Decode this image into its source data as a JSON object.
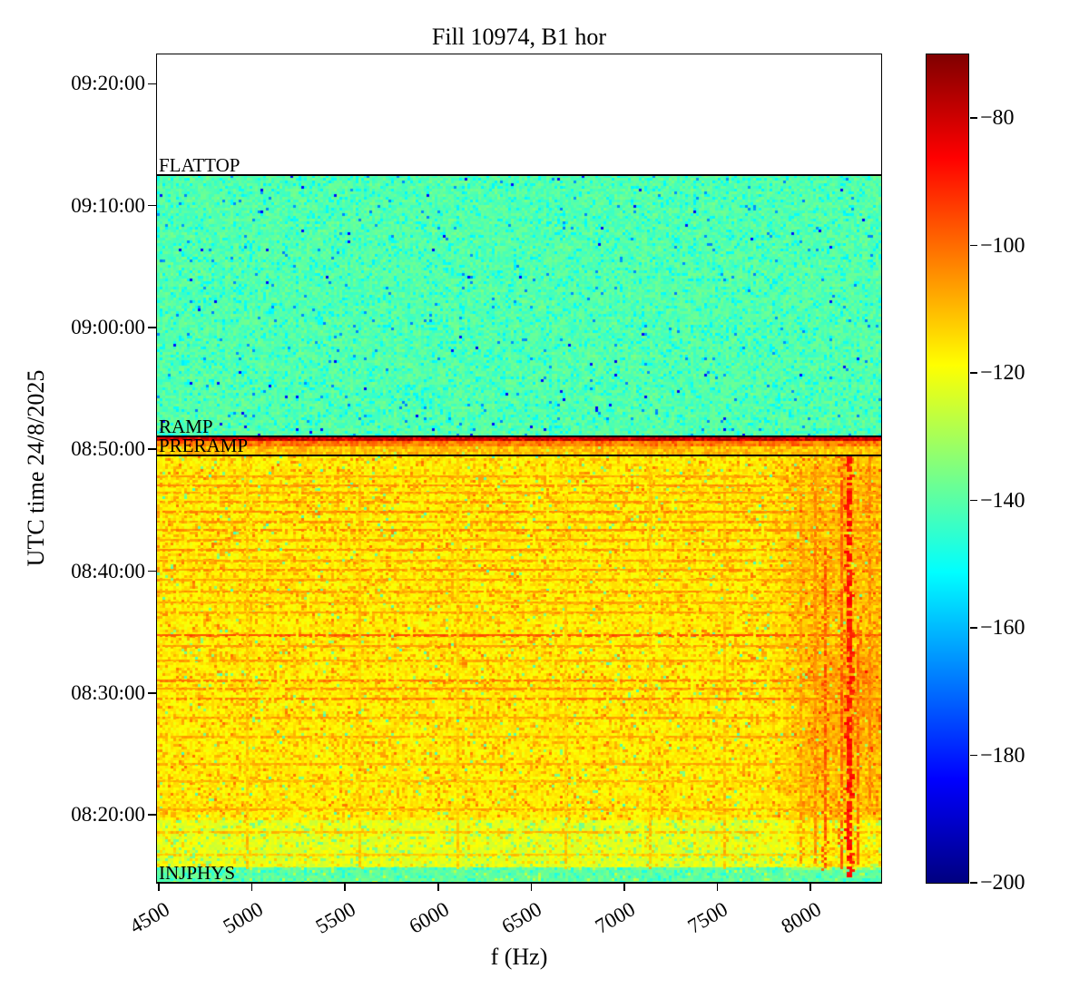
{
  "title": "Fill 10974, B1 hor",
  "axes": {
    "xlabel": "f (Hz)",
    "ylabel": "UTC time 24/8/2025",
    "x_ticks": [
      4500,
      5000,
      5500,
      6000,
      6500,
      7000,
      7500,
      8000
    ],
    "y_ticks": [
      "09:20:00",
      "09:10:00",
      "09:00:00",
      "08:50:00",
      "08:40:00",
      "08:30:00",
      "08:20:00"
    ],
    "x_range_hz": [
      4490,
      8380
    ],
    "y_top_time": "09:22:25",
    "y_bottom_time": "08:14:25"
  },
  "colorbar": {
    "colormap": "jet",
    "vmin": -200,
    "vmax": -70,
    "tick_values": [
      -80,
      -100,
      -120,
      -140,
      -160,
      -180,
      -200
    ],
    "tick_labels": [
      "−80",
      "−100",
      "−120",
      "−140",
      "−160",
      "−180",
      "−200"
    ]
  },
  "chart_data": {
    "type": "heatmap",
    "title": "Fill 10974, B1 hor",
    "xlabel": "f (Hz)",
    "ylabel": "UTC time 24/8/2025",
    "x_range": [
      4490,
      8380
    ],
    "value_range_db": [
      -200,
      -70
    ],
    "seed": 7,
    "annotations": [
      {
        "label": "FLATTOP",
        "time": "09:12:30"
      },
      {
        "label": "RAMP",
        "time": "08:51:05"
      },
      {
        "label": "PRERAMP",
        "time": "08:49:30"
      },
      {
        "label": "INJPHYS",
        "time": "08:14:25"
      }
    ],
    "regions": [
      {
        "name": "no-data-above-flattop",
        "t_from": "09:22:25",
        "t_to": "09:12:30",
        "type": "blank"
      },
      {
        "name": "flattop-green",
        "t_from": "09:12:30",
        "t_to": "08:51:05",
        "type": "speckle",
        "base": -141,
        "noise": 4,
        "specks": [
          {
            "p": 0.1,
            "dv": -10
          },
          {
            "p": 0.012,
            "dv": -25
          },
          {
            "p": 0.003,
            "dv": -42
          },
          {
            "p": 0.15,
            "dv": 4
          }
        ]
      },
      {
        "name": "ramp-red-band",
        "t_from": "08:51:05",
        "t_to": "08:50:43",
        "type": "speckle",
        "base": -80,
        "noise": 5,
        "specks": [
          {
            "p": 0.2,
            "dv": 4
          },
          {
            "p": 0.1,
            "dv": -9
          }
        ]
      },
      {
        "name": "ramp-orange-band",
        "t_from": "08:50:43",
        "t_to": "08:50:16",
        "type": "speckle",
        "base": -103,
        "noise": 5,
        "specks": [
          {
            "p": 0.15,
            "dv": 7
          }
        ]
      },
      {
        "name": "preramp-zone",
        "t_from": "08:50:16",
        "t_to": "08:49:30",
        "type": "speckle",
        "base": -112,
        "noise": 5,
        "specks": [
          {
            "p": 0.2,
            "dv": 6
          },
          {
            "p": 0.02,
            "dv": -16
          }
        ]
      },
      {
        "name": "injphys-yellow",
        "t_from": "08:49:30",
        "t_to": "08:19:35",
        "type": "speckle",
        "base": -117,
        "noise": 4,
        "specks": [
          {
            "p": 0.14,
            "dv": 9
          },
          {
            "p": 0.03,
            "dv": 15
          },
          {
            "p": 0.02,
            "dv": -18
          },
          {
            "p": 0.006,
            "dv": -24
          }
        ]
      },
      {
        "name": "injphys-light-band",
        "t_from": "08:19:35",
        "t_to": "08:15:40",
        "type": "speckle",
        "base": -122,
        "noise": 4,
        "specks": [
          {
            "p": 0.1,
            "dv": -14
          },
          {
            "p": 0.07,
            "dv": 9
          }
        ]
      },
      {
        "name": "injection-green-band",
        "t_from": "08:15:40",
        "t_to": "08:14:25",
        "type": "speckle",
        "base": -139,
        "noise": 4,
        "specks": [
          {
            "p": 0.12,
            "dv": -8
          },
          {
            "p": 0.05,
            "dv": 12
          }
        ]
      }
    ],
    "h_streaks": [
      {
        "time": "08:47:50",
        "value": -107
      },
      {
        "time": "08:47:05",
        "value": -105
      },
      {
        "time": "08:46:30",
        "value": -107
      },
      {
        "time": "08:45:45",
        "value": -106
      },
      {
        "time": "08:44:55",
        "value": -104
      },
      {
        "time": "08:44:10",
        "value": -106
      },
      {
        "time": "08:43:30",
        "value": -104
      },
      {
        "time": "08:42:40",
        "value": -107
      },
      {
        "time": "08:41:50",
        "value": -105
      },
      {
        "time": "08:40:55",
        "value": -107
      },
      {
        "time": "08:40:10",
        "value": -105
      },
      {
        "time": "08:39:20",
        "value": -107
      },
      {
        "time": "08:38:25",
        "value": -106
      },
      {
        "time": "08:37:30",
        "value": -108
      },
      {
        "time": "08:36:40",
        "value": -107
      },
      {
        "time": "08:34:50",
        "value": -97
      },
      {
        "time": "08:33:55",
        "value": -106
      },
      {
        "time": "08:32:45",
        "value": -107
      },
      {
        "time": "08:31:05",
        "value": -103
      },
      {
        "time": "08:30:25",
        "value": -105
      },
      {
        "time": "08:29:35",
        "value": -103
      },
      {
        "time": "08:28:05",
        "value": -107
      },
      {
        "time": "08:26:30",
        "value": -108
      },
      {
        "time": "08:24:15",
        "value": -108
      },
      {
        "time": "08:22:50",
        "value": -109
      },
      {
        "time": "08:20:30",
        "value": -108
      },
      {
        "time": "08:18:40",
        "value": -110
      },
      {
        "time": "08:16:50",
        "value": -112
      }
    ],
    "v_streaks": [
      {
        "f_hz": 8195,
        "value": -89,
        "w": 2,
        "t_from": "08:49:30",
        "t_to": "08:15:00"
      },
      {
        "f_hz": 8160,
        "value": -98,
        "w": 1,
        "t_from": "08:49:30",
        "t_to": "08:15:30"
      },
      {
        "f_hz": 8075,
        "value": -97,
        "w": 1,
        "t_from": "08:42:00",
        "t_to": "08:15:30"
      },
      {
        "f_hz": 8020,
        "value": -104,
        "w": 1,
        "t_from": "08:49:30",
        "t_to": "08:16:00"
      },
      {
        "f_hz": 7940,
        "value": -105,
        "w": 1,
        "t_from": "08:49:30",
        "t_to": "08:16:00"
      },
      {
        "f_hz": 8250,
        "value": -100,
        "w": 1,
        "t_from": "08:36:00",
        "t_to": "08:16:00"
      },
      {
        "f_hz": 8310,
        "value": -103,
        "w": 1,
        "t_from": "08:49:30",
        "t_to": "08:20:00"
      },
      {
        "f_hz": 4970,
        "value": -111,
        "w": 1,
        "t_from": "08:49:30",
        "t_to": "08:15:40"
      },
      {
        "f_hz": 5570,
        "value": -111,
        "w": 1,
        "t_from": "08:49:30",
        "t_to": "08:15:40"
      },
      {
        "f_hz": 6100,
        "value": -112,
        "w": 1,
        "t_from": "08:49:30",
        "t_to": "08:15:40"
      },
      {
        "f_hz": 6680,
        "value": -112,
        "w": 1,
        "t_from": "08:49:30",
        "t_to": "08:15:40"
      },
      {
        "f_hz": 7130,
        "value": -111,
        "w": 1,
        "t_from": "08:49:30",
        "t_to": "08:15:40"
      },
      {
        "f_hz": 7530,
        "value": -110,
        "w": 1,
        "t_from": "08:49:30",
        "t_to": "08:15:40"
      }
    ],
    "diffuse": [
      {
        "f_from": 7750,
        "f_to": 8380,
        "t_from": "08:49:30",
        "t_to": "08:15:40",
        "boost": 6
      },
      {
        "f_from": 7950,
        "f_to": 8380,
        "t_from": "08:33:00",
        "t_to": "08:25:30",
        "boost": 4
      }
    ]
  }
}
